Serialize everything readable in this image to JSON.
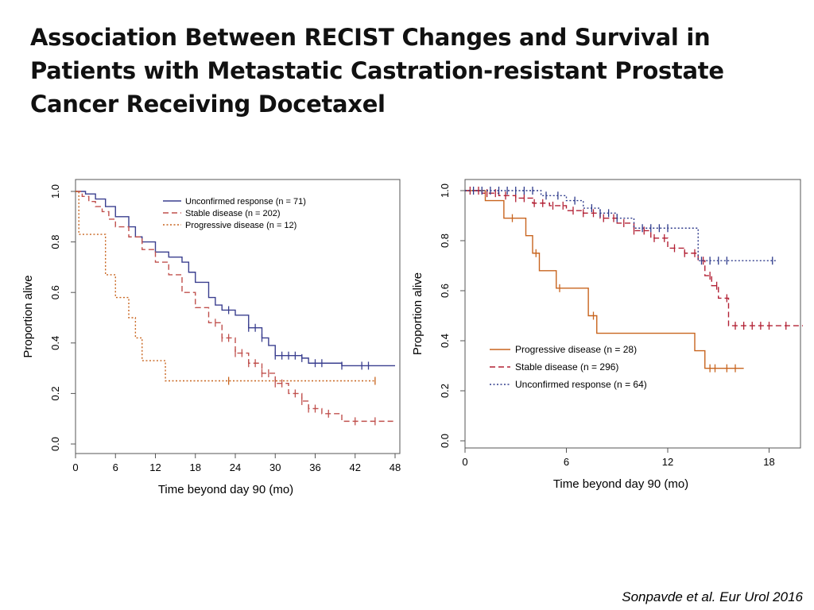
{
  "slide": {
    "title": "Association Between RECIST Changes and Survival in Patients with Metastatic Castration-resistant Prostate Cancer Receiving Docetaxel",
    "citation": "Sonpavde et al. Eur Urol 2016"
  },
  "chart_data": [
    {
      "type": "line",
      "step": true,
      "xlabel": "Time beyond day 90 (mo)",
      "ylabel": "Proportion alive",
      "xlim": [
        0,
        48
      ],
      "ylim": [
        0,
        1
      ],
      "xticks": [
        0,
        6,
        12,
        18,
        24,
        30,
        36,
        42,
        48
      ],
      "yticks": [
        0.0,
        0.2,
        0.4,
        0.6,
        0.8,
        1.0
      ],
      "legend_position": "top-right",
      "series": [
        {
          "name": "Unconfirmed response (n = 71)",
          "color": "#3a3f8f",
          "dash": "solid",
          "x": [
            0,
            1.5,
            3,
            4.5,
            6,
            8,
            9,
            10,
            12,
            14,
            16,
            17,
            18,
            20,
            21,
            22,
            24,
            26,
            28,
            29,
            30,
            32,
            34,
            35,
            37,
            40,
            43,
            45,
            48
          ],
          "y": [
            1.0,
            0.99,
            0.97,
            0.94,
            0.9,
            0.86,
            0.82,
            0.8,
            0.76,
            0.74,
            0.72,
            0.68,
            0.64,
            0.58,
            0.55,
            0.53,
            0.51,
            0.46,
            0.42,
            0.39,
            0.35,
            0.35,
            0.34,
            0.32,
            0.32,
            0.31,
            0.31,
            0.31,
            0.31
          ],
          "censor_x": [
            23,
            26,
            27,
            28,
            30,
            31,
            32,
            33,
            34,
            36,
            37,
            40,
            43,
            44
          ]
        },
        {
          "name": "Stable disease (n = 202)",
          "color": "#c0504d",
          "dash": "dash",
          "x": [
            0,
            1,
            2,
            3,
            4,
            5,
            6,
            8,
            10,
            12,
            14,
            16,
            18,
            20,
            22,
            24,
            26,
            28,
            30,
            32,
            34,
            35,
            37,
            40,
            42,
            45,
            48
          ],
          "y": [
            1.0,
            0.98,
            0.96,
            0.94,
            0.92,
            0.89,
            0.86,
            0.82,
            0.77,
            0.72,
            0.67,
            0.6,
            0.54,
            0.48,
            0.42,
            0.36,
            0.32,
            0.28,
            0.24,
            0.2,
            0.17,
            0.14,
            0.12,
            0.09,
            0.09,
            0.09,
            0.09
          ],
          "censor_x": [
            21,
            22,
            23,
            24,
            25,
            26,
            27,
            28,
            29,
            30,
            31,
            33,
            34,
            35,
            36,
            38,
            42,
            45
          ]
        },
        {
          "name": "Progressive disease (n = 12)",
          "color": "#c8641e",
          "dash": "dot",
          "x": [
            0,
            0.5,
            4,
            4.5,
            6,
            8,
            9,
            10,
            13.5,
            23,
            45
          ],
          "y": [
            1.0,
            0.83,
            0.83,
            0.67,
            0.58,
            0.5,
            0.42,
            0.33,
            0.25,
            0.25,
            0.25
          ],
          "censor_x": [
            23,
            45
          ]
        }
      ]
    },
    {
      "type": "line",
      "step": true,
      "xlabel": "Time beyond day 90 (mo)",
      "ylabel": "Proportion alive",
      "xlim": [
        0,
        20
      ],
      "ylim": [
        0,
        1
      ],
      "xticks": [
        0,
        6,
        12,
        18
      ],
      "yticks": [
        0.0,
        0.2,
        0.4,
        0.6,
        0.8,
        1.0
      ],
      "legend_position": "bottom-left",
      "series": [
        {
          "name": "Progressive disease (n = 28)",
          "color": "#c8641e",
          "dash": "solid",
          "x": [
            0,
            1.2,
            2.3,
            3.6,
            4.0,
            4.4,
            5.4,
            7.3,
            7.8,
            13.6,
            14.2,
            16.5
          ],
          "y": [
            1.0,
            0.96,
            0.89,
            0.82,
            0.75,
            0.68,
            0.61,
            0.5,
            0.43,
            0.36,
            0.29,
            0.29
          ],
          "censor_x": [
            2.8,
            4.2,
            5.6,
            7.6,
            14.5,
            14.8,
            15.5,
            16.0
          ]
        },
        {
          "name": "Stable disease (n = 296)",
          "color": "#b22034",
          "dash": "dash",
          "x": [
            0,
            1,
            2,
            3,
            4,
            5,
            6,
            7,
            8,
            9,
            10,
            11,
            12,
            13,
            13.8,
            14.2,
            14.6,
            15,
            15.6,
            20
          ],
          "y": [
            1.0,
            0.99,
            0.98,
            0.97,
            0.95,
            0.94,
            0.92,
            0.91,
            0.89,
            0.87,
            0.84,
            0.81,
            0.77,
            0.75,
            0.72,
            0.66,
            0.62,
            0.57,
            0.46,
            0.46
          ],
          "censor_x": [
            0.3,
            0.8,
            1.3,
            1.8,
            2.4,
            3.0,
            3.5,
            4.1,
            4.6,
            5.2,
            5.8,
            6.4,
            7.0,
            7.6,
            8.2,
            8.8,
            9.4,
            10.0,
            10.6,
            11.2,
            11.8,
            12.4,
            13.0,
            13.6,
            14.1,
            14.5,
            14.9,
            15.5,
            16.0,
            16.5,
            17.0,
            17.5,
            18.0,
            19.0
          ]
        },
        {
          "name": "Unconfirmed response (n = 64)",
          "color": "#303c8c",
          "dash": "dot",
          "x": [
            0,
            4.5,
            6,
            7,
            8,
            9,
            10,
            12.5,
            13.8,
            18.5
          ],
          "y": [
            1.0,
            0.98,
            0.96,
            0.93,
            0.91,
            0.89,
            0.85,
            0.85,
            0.72,
            0.72
          ],
          "censor_x": [
            0.5,
            1.0,
            1.5,
            2.0,
            2.5,
            3.0,
            3.5,
            4.0,
            4.8,
            5.5,
            6.5,
            7.5,
            8.0,
            8.5,
            9.0,
            10.5,
            11.0,
            11.5,
            12.0,
            14.0,
            14.5,
            15.0,
            15.5,
            18.2
          ]
        }
      ]
    }
  ]
}
